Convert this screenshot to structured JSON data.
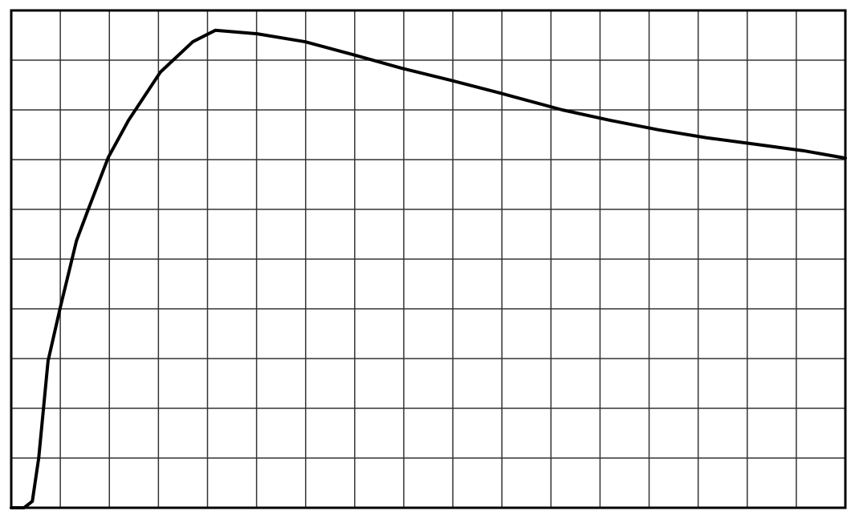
{
  "chart_data": {
    "type": "line",
    "x": [
      0,
      0.26,
      0.43,
      0.56,
      0.75,
      1.0,
      1.33,
      1.57,
      1.98,
      2.39,
      3.04,
      3.7,
      4.16,
      5.01,
      5.99,
      6.97,
      7.95,
      8.94,
      9.92,
      11.23,
      12.21,
      13.19,
      14.17,
      15.16,
      16.14,
      17
    ],
    "series": [
      {
        "color": "#000000",
        "values": [
          0,
          0,
          0.13,
          1.0,
          2.95,
          4.03,
          5.37,
          6.0,
          7.05,
          7.79,
          8.76,
          9.37,
          9.6,
          9.53,
          9.37,
          9.11,
          8.84,
          8.6,
          8.35,
          8.0,
          7.79,
          7.6,
          7.44,
          7.31,
          7.18,
          7.03
        ]
      }
    ],
    "xlim": [
      0,
      17
    ],
    "ylim": [
      0,
      10
    ],
    "xticks": [
      0,
      1,
      2,
      3,
      4,
      5,
      6,
      7,
      8,
      9,
      10,
      11,
      12,
      13,
      14,
      15,
      16,
      17
    ],
    "yticks": [
      0,
      1,
      2,
      3,
      4,
      5,
      6,
      7,
      8,
      9,
      10
    ],
    "grid": true,
    "grid_color": "#333333"
  }
}
